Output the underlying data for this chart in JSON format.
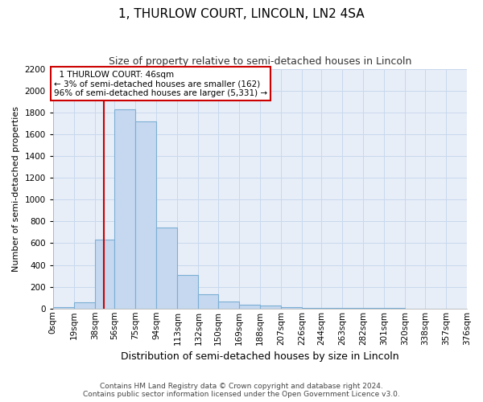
{
  "title": "1, THURLOW COURT, LINCOLN, LN2 4SA",
  "subtitle": "Size of property relative to semi-detached houses in Lincoln",
  "xlabel": "Distribution of semi-detached houses by size in Lincoln",
  "ylabel": "Number of semi-detached properties",
  "footer_line1": "Contains HM Land Registry data © Crown copyright and database right 2024.",
  "footer_line2": "Contains public sector information licensed under the Open Government Licence v3.0.",
  "annotation_title": "1 THURLOW COURT: 46sqm",
  "annotation_line1": "← 3% of semi-detached houses are smaller (162)",
  "annotation_line2": "96% of semi-detached houses are larger (5,331) →",
  "property_size": 46,
  "bin_edges": [
    0,
    19,
    38,
    56,
    75,
    94,
    113,
    132,
    150,
    169,
    188,
    207,
    226,
    244,
    263,
    282,
    301,
    320,
    338,
    357,
    376
  ],
  "bar_heights": [
    10,
    55,
    630,
    1830,
    1720,
    740,
    305,
    130,
    65,
    35,
    30,
    15,
    5,
    3,
    2,
    2,
    2,
    1,
    1,
    1
  ],
  "bar_color": "#c5d8ef",
  "bar_edge_color": "#7bafd4",
  "vline_color": "#cc0000",
  "annotation_box_edge_color": "#cc0000",
  "annotation_box_face_color": "#ffffff",
  "grid_color": "#c8d8ed",
  "background_color": "#e8eef8",
  "ylim": [
    0,
    2200
  ],
  "yticks": [
    0,
    200,
    400,
    600,
    800,
    1000,
    1200,
    1400,
    1600,
    1800,
    2000,
    2200
  ],
  "title_fontsize": 11,
  "subtitle_fontsize": 9,
  "ylabel_fontsize": 8,
  "xlabel_fontsize": 9,
  "tick_fontsize": 7.5,
  "footer_fontsize": 6.5
}
